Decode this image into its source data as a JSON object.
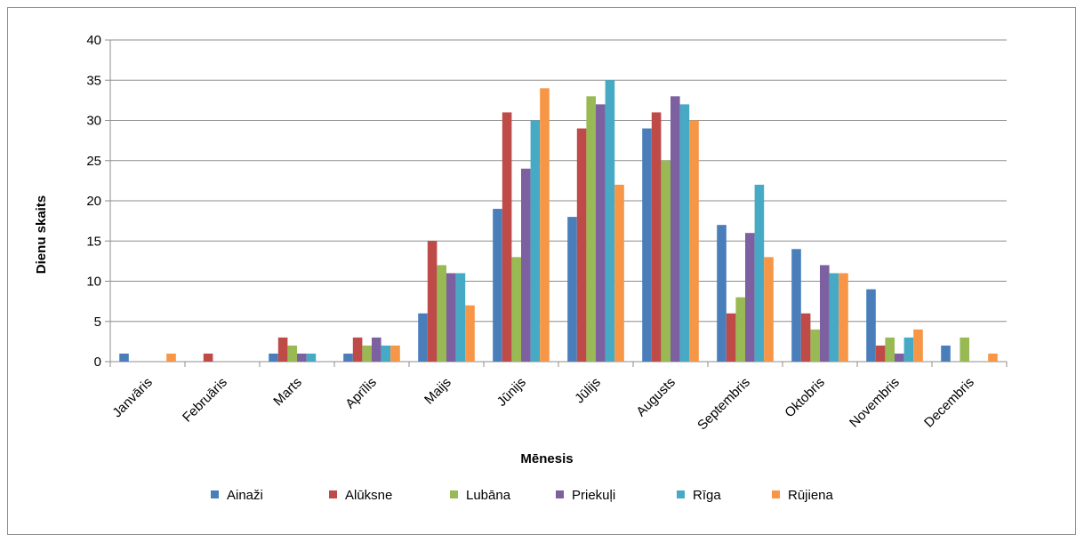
{
  "chart_data": {
    "type": "bar",
    "title": "",
    "xlabel": "Mēnesis",
    "ylabel": "Dienu skaits",
    "ylim": [
      0,
      40
    ],
    "yticks": [
      0,
      5,
      10,
      15,
      20,
      25,
      30,
      35,
      40
    ],
    "grid": true,
    "legend_position": "bottom",
    "categories": [
      "Janvāris",
      "Februāris",
      "Marts",
      "Aprīlis",
      "Maijs",
      "Jūnijs",
      "Jūlijs",
      "Augusts",
      "Septembris",
      "Oktobris",
      "Novembris",
      "Decembris"
    ],
    "series": [
      {
        "name": "Ainaži",
        "color": "#4a7ebb",
        "values": [
          1,
          0,
          1,
          1,
          6,
          19,
          18,
          29,
          17,
          14,
          9,
          2
        ]
      },
      {
        "name": "Alūksne",
        "color": "#be4b48",
        "values": [
          0,
          1,
          3,
          3,
          15,
          31,
          29,
          31,
          6,
          6,
          2,
          0
        ]
      },
      {
        "name": "Lubāna",
        "color": "#98b954",
        "values": [
          0,
          0,
          2,
          2,
          12,
          13,
          33,
          25,
          8,
          4,
          3,
          3
        ]
      },
      {
        "name": "Priekuļi",
        "color": "#7d60a0",
        "values": [
          0,
          0,
          1,
          3,
          11,
          24,
          32,
          33,
          16,
          12,
          1,
          0
        ]
      },
      {
        "name": "Rīga",
        "color": "#46aac5",
        "values": [
          0,
          0,
          1,
          2,
          11,
          30,
          35,
          32,
          22,
          11,
          3,
          0
        ]
      },
      {
        "name": "Rūjiena",
        "color": "#f79646",
        "values": [
          1,
          0,
          0,
          2,
          7,
          34,
          22,
          30,
          13,
          11,
          4,
          1
        ]
      }
    ]
  }
}
